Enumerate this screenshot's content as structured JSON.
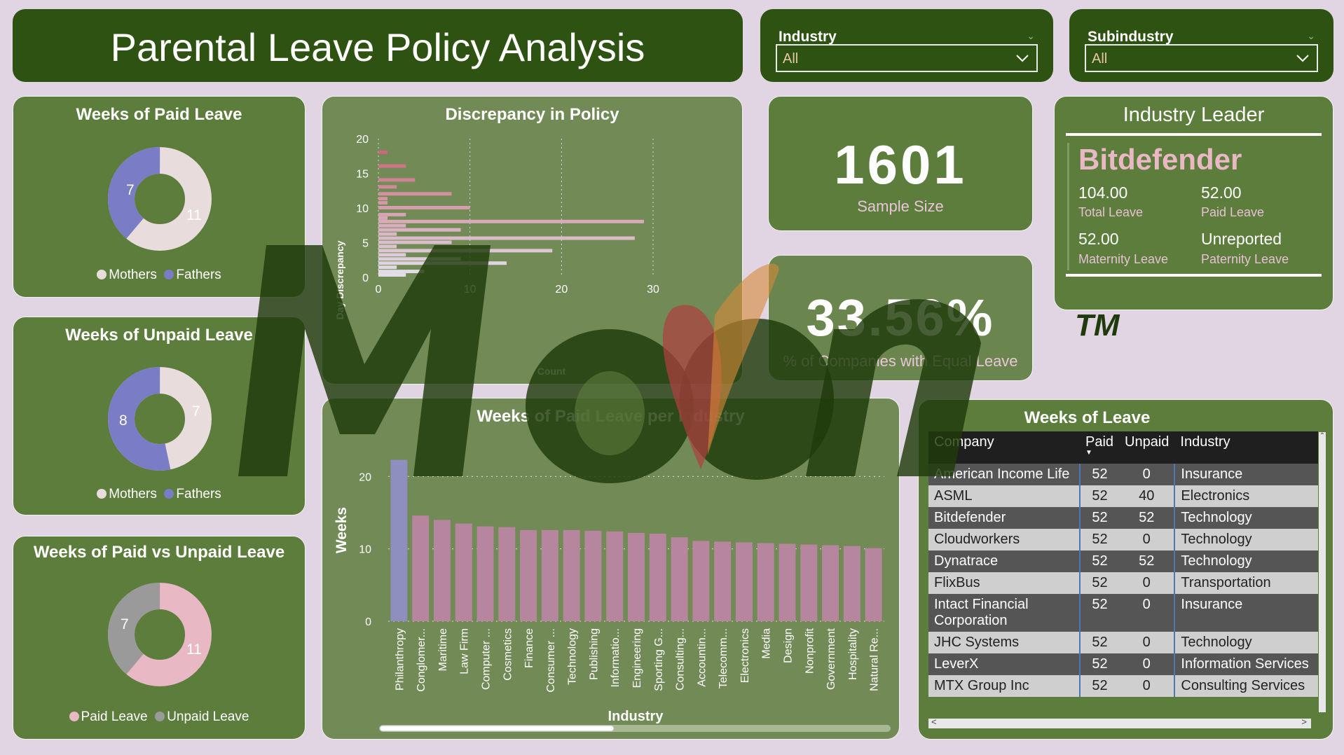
{
  "title": "Parental Leave Policy Analysis",
  "filters": [
    {
      "label": "Industry",
      "value": "All"
    },
    {
      "label": "Subindustry",
      "value": "All"
    }
  ],
  "paid_leave": {
    "title": "Weeks of Paid Leave",
    "legend": [
      "Mothers",
      "Fathers"
    ],
    "mothers": 11,
    "fathers": 7,
    "mothers_label": "11",
    "fathers_label": "7"
  },
  "unpaid_leave": {
    "title": "Weeks of Unpaid Leave",
    "legend": [
      "Mothers",
      "Fathers"
    ],
    "mothers": 7,
    "fathers": 8,
    "mothers_label": "7",
    "fathers_label": "8"
  },
  "paid_vs_unpaid": {
    "title": "Weeks of Paid vs Unpaid Leave",
    "legend": [
      "Paid Leave",
      "Unpaid Leave"
    ],
    "paid": 11,
    "unpaid": 7,
    "paid_label": "11",
    "unpaid_label": "7"
  },
  "kpis": {
    "sample_size": "1601",
    "sample_size_label": "Sample Size",
    "equal_pct": "33.56%",
    "equal_pct_label": "% of Companies with Equal Leave"
  },
  "leader": {
    "title": "Industry Leader",
    "company": "Bitdefender",
    "total_leave": "104.00",
    "total_leave_label": "Total Leave",
    "paid_leave": "52.00",
    "paid_leave_label": "Paid Leave",
    "maternity": "52.00",
    "maternity_label": "Maternity Leave",
    "paternity": "Unreported",
    "paternity_label": "Paternity Leave"
  },
  "table": {
    "title": "Weeks of Leave",
    "headers": [
      "Company",
      "Paid",
      "Unpaid",
      "Industry"
    ],
    "rows": [
      [
        "American Income Life",
        "52",
        "0",
        "Insurance"
      ],
      [
        "ASML",
        "52",
        "40",
        "Electronics"
      ],
      [
        "Bitdefender",
        "52",
        "52",
        "Technology"
      ],
      [
        "Cloudworkers",
        "52",
        "0",
        "Technology"
      ],
      [
        "Dynatrace",
        "52",
        "52",
        "Technology"
      ],
      [
        "FlixBus",
        "52",
        "0",
        "Transportation"
      ],
      [
        "Intact Financial Corporation",
        "52",
        "0",
        "Insurance"
      ],
      [
        "JHC Systems",
        "52",
        "0",
        "Technology"
      ],
      [
        "LeverX",
        "52",
        "0",
        "Information Services"
      ],
      [
        "MTX Group Inc",
        "52",
        "0",
        "Consulting Services"
      ]
    ]
  },
  "chart_data": [
    {
      "type": "bar",
      "orientation": "horizontal",
      "title": "Discrepancy in Policy",
      "xlabel": "Count",
      "ylabel": "Day Discrepancy",
      "xlim": [
        0,
        30
      ],
      "ylim": [
        0,
        20
      ],
      "xticks": [
        "0",
        "10",
        "20",
        "30"
      ],
      "yticks": [
        "0",
        "5",
        "10",
        "15",
        "20"
      ],
      "grid": "vertical-dotted",
      "bars": [
        {
          "y": 18,
          "count": 1
        },
        {
          "y": 16,
          "count": 3
        },
        {
          "y": 14,
          "count": 4
        },
        {
          "y": 13,
          "count": 2
        },
        {
          "y": 12,
          "count": 8
        },
        {
          "y": 11.3,
          "count": 1
        },
        {
          "y": 10.7,
          "count": 1
        },
        {
          "y": 10,
          "count": 10
        },
        {
          "y": 9,
          "count": 3
        },
        {
          "y": 8.5,
          "count": 1
        },
        {
          "y": 8,
          "count": 29
        },
        {
          "y": 7.4,
          "count": 3
        },
        {
          "y": 6.8,
          "count": 9
        },
        {
          "y": 6.2,
          "count": 2
        },
        {
          "y": 5.6,
          "count": 28
        },
        {
          "y": 5.0,
          "count": 8
        },
        {
          "y": 4.4,
          "count": 2
        },
        {
          "y": 3.8,
          "count": 19
        },
        {
          "y": 3.2,
          "count": 3
        },
        {
          "y": 2.6,
          "count": 9
        },
        {
          "y": 2.0,
          "count": 14
        },
        {
          "y": 1.4,
          "count": 2
        },
        {
          "y": 0.8,
          "count": 5
        },
        {
          "y": 0.3,
          "count": 3
        }
      ]
    },
    {
      "type": "bar",
      "title": "Weeks of Paid Leave per Industry",
      "xlabel": "Industry",
      "ylabel": "Weeks",
      "ylim": [
        0,
        24
      ],
      "yticks": [
        "0",
        "10",
        "20"
      ],
      "categories": [
        "Philanthropy",
        "Conglomer...",
        "Maritime",
        "Law Firm",
        "Computer ...",
        "Cosmetics",
        "Finance",
        "Consumer ...",
        "Technology",
        "Publishing",
        "Informatio...",
        "Engineering",
        "Sporting G...",
        "Consulting...",
        "Accountin...",
        "Telecomm...",
        "Electronics",
        "Media",
        "Design",
        "Nonprofit",
        "Government",
        "Hospitality",
        "Natural Re..."
      ],
      "values": [
        22.3,
        14.6,
        14.0,
        13.5,
        13.1,
        13.0,
        12.6,
        12.6,
        12.6,
        12.5,
        12.4,
        12.2,
        12.1,
        11.6,
        11.1,
        11.0,
        10.9,
        10.8,
        10.7,
        10.6,
        10.5,
        10.4,
        10.1
      ],
      "highlight_color": "#8e8fbf",
      "bar_color": "#b5869d"
    }
  ]
}
